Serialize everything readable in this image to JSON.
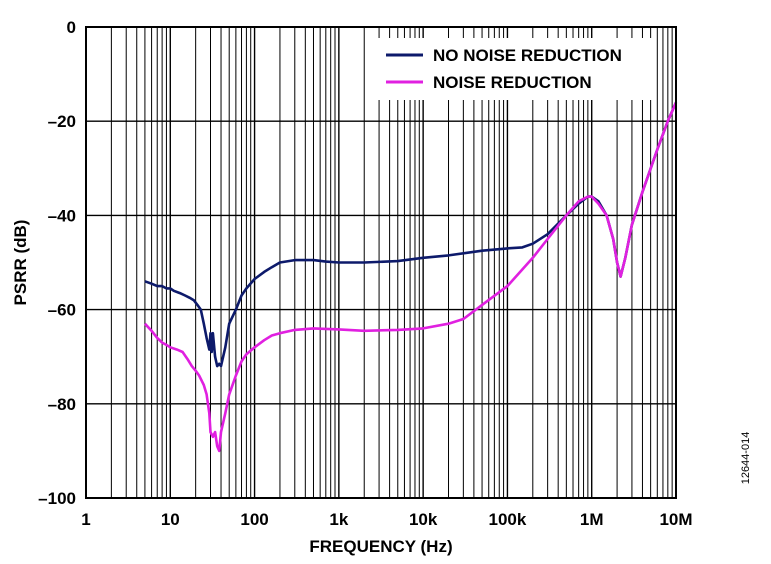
{
  "figure_id": "12644-014",
  "chart_data": {
    "type": "line",
    "xlabel": "FREQUENCY (Hz)",
    "ylabel": "PSRR (dB)",
    "x_scale": "log",
    "xlim": [
      1,
      10000000
    ],
    "ylim": [
      -100,
      0
    ],
    "x_ticks": [
      {
        "value": 1,
        "label": "1"
      },
      {
        "value": 10,
        "label": "10"
      },
      {
        "value": 100,
        "label": "100"
      },
      {
        "value": 1000,
        "label": "1k"
      },
      {
        "value": 10000,
        "label": "10k"
      },
      {
        "value": 100000,
        "label": "100k"
      },
      {
        "value": 1000000,
        "label": "1M"
      },
      {
        "value": 10000000,
        "label": "10M"
      }
    ],
    "y_ticks": [
      {
        "value": 0,
        "label": "0"
      },
      {
        "value": -20,
        "label": "–20"
      },
      {
        "value": -40,
        "label": "–40"
      },
      {
        "value": -60,
        "label": "–60"
      },
      {
        "value": -80,
        "label": "–80"
      },
      {
        "value": -100,
        "label": "–100"
      }
    ],
    "grid": true,
    "legend_position": "top-right",
    "series": [
      {
        "name": "NO NOISE REDUCTION",
        "color": "#0d1a6b",
        "points": [
          [
            5,
            -54
          ],
          [
            6,
            -54.5
          ],
          [
            7,
            -55
          ],
          [
            8,
            -55
          ],
          [
            9,
            -55.5
          ],
          [
            10,
            -55.5
          ],
          [
            11,
            -56
          ],
          [
            13,
            -56.5
          ],
          [
            15,
            -57
          ],
          [
            17,
            -57.5
          ],
          [
            19,
            -58
          ],
          [
            21,
            -59
          ],
          [
            23,
            -60
          ],
          [
            25,
            -63
          ],
          [
            27,
            -66
          ],
          [
            29,
            -68.5
          ],
          [
            30,
            -65
          ],
          [
            31,
            -69
          ],
          [
            32,
            -65
          ],
          [
            34,
            -70
          ],
          [
            36,
            -72
          ],
          [
            38,
            -71.5
          ],
          [
            40,
            -72
          ],
          [
            45,
            -68
          ],
          [
            50,
            -63
          ],
          [
            60,
            -60
          ],
          [
            70,
            -57
          ],
          [
            80,
            -55.5
          ],
          [
            100,
            -53.5
          ],
          [
            130,
            -52
          ],
          [
            160,
            -51
          ],
          [
            200,
            -50
          ],
          [
            300,
            -49.5
          ],
          [
            500,
            -49.5
          ],
          [
            700,
            -49.8
          ],
          [
            1000,
            -50
          ],
          [
            2000,
            -50
          ],
          [
            5000,
            -49.7
          ],
          [
            10000,
            -49
          ],
          [
            20000,
            -48.5
          ],
          [
            50000,
            -47.5
          ],
          [
            100000,
            -47
          ],
          [
            150000,
            -46.8
          ],
          [
            200000,
            -46
          ],
          [
            300000,
            -44
          ],
          [
            500000,
            -40
          ],
          [
            700000,
            -37.5
          ],
          [
            900000,
            -36
          ],
          [
            1000000,
            -36
          ],
          [
            1200000,
            -37
          ],
          [
            1500000,
            -40
          ],
          [
            1800000,
            -45
          ],
          [
            2000000,
            -50
          ],
          [
            2200000,
            -53
          ],
          [
            2500000,
            -49
          ],
          [
            3000000,
            -42
          ],
          [
            4000000,
            -35
          ],
          [
            6000000,
            -26
          ],
          [
            8000000,
            -20
          ],
          [
            10000000,
            -16
          ]
        ]
      },
      {
        "name": "NOISE REDUCTION",
        "color": "#e020e0",
        "points": [
          [
            5,
            -63
          ],
          [
            6,
            -64.5
          ],
          [
            7,
            -66
          ],
          [
            8,
            -67
          ],
          [
            9,
            -67.5
          ],
          [
            10,
            -68
          ],
          [
            12,
            -68.5
          ],
          [
            14,
            -69
          ],
          [
            16,
            -70.5
          ],
          [
            18,
            -72
          ],
          [
            20,
            -73
          ],
          [
            22,
            -74
          ],
          [
            25,
            -76
          ],
          [
            27,
            -78
          ],
          [
            29,
            -82
          ],
          [
            30,
            -86
          ],
          [
            32,
            -87
          ],
          [
            34,
            -86
          ],
          [
            36,
            -89
          ],
          [
            38,
            -90
          ],
          [
            40,
            -86
          ],
          [
            45,
            -82
          ],
          [
            50,
            -78
          ],
          [
            60,
            -74
          ],
          [
            70,
            -71
          ],
          [
            80,
            -69.5
          ],
          [
            100,
            -68
          ],
          [
            130,
            -66.5
          ],
          [
            160,
            -65.5
          ],
          [
            200,
            -65
          ],
          [
            300,
            -64.3
          ],
          [
            500,
            -64
          ],
          [
            1000,
            -64.2
          ],
          [
            2000,
            -64.5
          ],
          [
            5000,
            -64.3
          ],
          [
            10000,
            -64
          ],
          [
            20000,
            -63
          ],
          [
            30000,
            -62
          ],
          [
            50000,
            -59
          ],
          [
            100000,
            -55
          ],
          [
            200000,
            -49
          ],
          [
            300000,
            -45
          ],
          [
            500000,
            -40
          ],
          [
            700000,
            -37
          ],
          [
            900000,
            -36
          ],
          [
            1000000,
            -36
          ],
          [
            1200000,
            -37.5
          ],
          [
            1500000,
            -40
          ],
          [
            1800000,
            -45
          ],
          [
            2000000,
            -50
          ],
          [
            2200000,
            -53
          ],
          [
            2500000,
            -49
          ],
          [
            3000000,
            -42
          ],
          [
            4000000,
            -35
          ],
          [
            6000000,
            -26
          ],
          [
            8000000,
            -20
          ],
          [
            10000000,
            -16
          ]
        ]
      }
    ]
  }
}
